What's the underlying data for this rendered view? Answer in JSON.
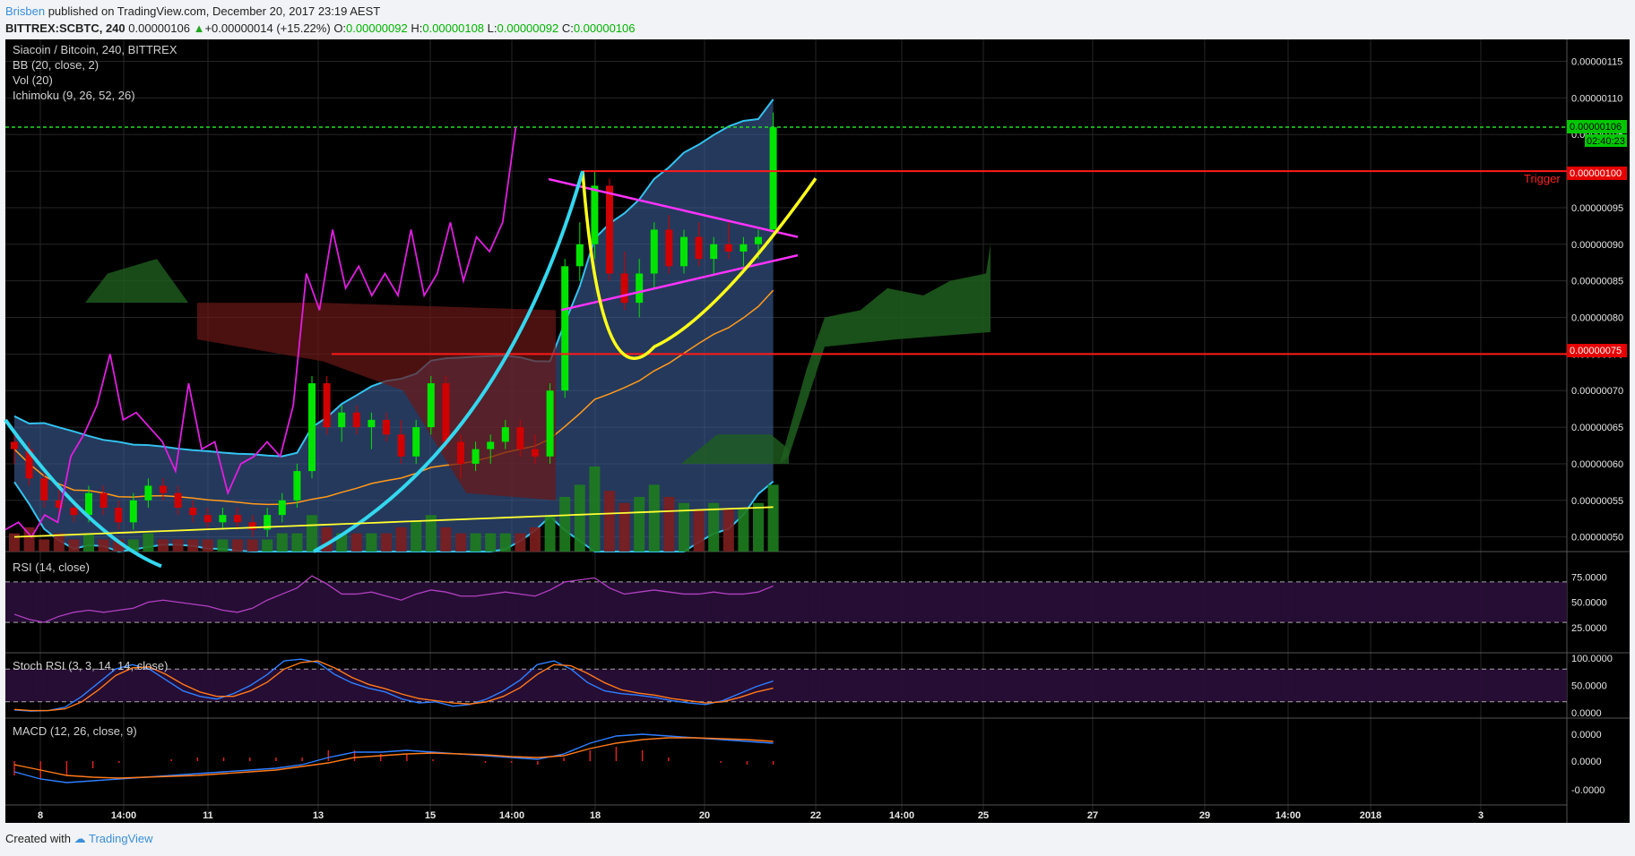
{
  "header": {
    "author": "Brisben",
    "published": "published on TradingView.com, December 20, 2017 23:19 AEST",
    "symbol": "BITTREX:SCBTC, 240",
    "price": "0.00000106",
    "change_arrow": "▲",
    "change": "+0.00000014 (+15.22%)",
    "o_label": "O:",
    "o_value": "0.00000092",
    "h_label": "H:",
    "h_value": "0.00000108",
    "l_label": "L:",
    "l_value": "0.00000092",
    "c_label": "C:",
    "c_value": "0.00000106"
  },
  "legend": {
    "title": "Siacoin / Bitcoin, 240, BITTREX",
    "bb": "BB (20, close, 2)",
    "vol": "Vol (20)",
    "ichimoku": "Ichimoku (9, 26, 52, 26)"
  },
  "panes": {
    "rsi": "RSI (14, close)",
    "stoch": "Stoch RSI (3, 3, 14, 14, close)",
    "macd": "MACD (12, 26, close, 9)"
  },
  "price_axis": [
    "0.00000115",
    "0.00000110",
    "0.00000105",
    "0.00000100",
    "0.00000095",
    "0.00000090",
    "0.00000085",
    "0.00000080",
    "0.00000075",
    "0.00000070",
    "0.00000065",
    "0.00000060",
    "0.00000055",
    "0.00000050"
  ],
  "rsi_axis": [
    "75.0000",
    "50.0000",
    "25.0000"
  ],
  "stoch_axis": [
    "100.0000",
    "50.0000",
    "0.0000"
  ],
  "macd_axis": [
    "0.0000",
    "0.0000",
    "-0.0000"
  ],
  "time_axis": [
    "8",
    "14:00",
    "11",
    "13",
    "15",
    "14:00",
    "18",
    "20",
    "22",
    "14:00",
    "25",
    "27",
    "29",
    "14:00",
    "2018",
    "3"
  ],
  "price_tags": {
    "last": "0.00000106",
    "countdown": "02:40:23",
    "trigger_price": "0.00000100",
    "trigger_label": "Trigger",
    "support_price": "0.00000075"
  },
  "footer": {
    "created": "Created with",
    "brand": "TradingView"
  },
  "colors": {
    "background": "#000000",
    "bull": "#00e500",
    "bear": "#d00000",
    "bb_line": "#33c3ef",
    "bb_fill": "#3d5f99",
    "cloud_bull": "#1f5e1f",
    "cloud_bear": "#6b1717",
    "trigger_line": "#ff1a1a",
    "triangle": "#ff33ff",
    "cup": "#ffff1a",
    "curve": "#33d8f0",
    "macd_line": "#2f7fff",
    "signal_line": "#ff7a1a"
  },
  "chart_data": {
    "type": "candlestick",
    "symbol": "BITTREX:SCBTC",
    "interval": "240",
    "ylim": [
      4.8e-07,
      1.18e-06
    ],
    "last_price": 1.06e-06,
    "horizontal_levels": [
      1e-06,
      7.5e-07
    ],
    "candles": [
      [
        6.3e-07,
        6.4e-07,
        6e-07,
        6.2e-07
      ],
      [
        6.2e-07,
        6.3e-07,
        5.7e-07,
        5.8e-07
      ],
      [
        5.8e-07,
        5.9e-07,
        5.4e-07,
        5.5e-07
      ],
      [
        5.5e-07,
        5.7e-07,
        5.3e-07,
        5.4e-07
      ],
      [
        5.4e-07,
        5.5e-07,
        5.2e-07,
        5.3e-07
      ],
      [
        5.3e-07,
        5.7e-07,
        5.2e-07,
        5.6e-07
      ],
      [
        5.6e-07,
        5.7e-07,
        5.3e-07,
        5.4e-07
      ],
      [
        5.4e-07,
        5.5e-07,
        5.1e-07,
        5.2e-07
      ],
      [
        5.2e-07,
        5.6e-07,
        5.1e-07,
        5.5e-07
      ],
      [
        5.5e-07,
        5.8e-07,
        5.4e-07,
        5.7e-07
      ],
      [
        5.7e-07,
        5.8e-07,
        5.5e-07,
        5.6e-07
      ],
      [
        5.6e-07,
        5.7e-07,
        5.3e-07,
        5.4e-07
      ],
      [
        5.4e-07,
        5.5e-07,
        5.2e-07,
        5.3e-07
      ],
      [
        5.3e-07,
        5.4e-07,
        5.1e-07,
        5.2e-07
      ],
      [
        5.2e-07,
        5.4e-07,
        5.1e-07,
        5.3e-07
      ],
      [
        5.3e-07,
        5.4e-07,
        5.1e-07,
        5.2e-07
      ],
      [
        5.2e-07,
        5.3e-07,
        5e-07,
        5.1e-07
      ],
      [
        5.1e-07,
        5.4e-07,
        5e-07,
        5.3e-07
      ],
      [
        5.3e-07,
        5.6e-07,
        5.2e-07,
        5.5e-07
      ],
      [
        5.5e-07,
        6e-07,
        5.4e-07,
        5.9e-07
      ],
      [
        5.9e-07,
        7.2e-07,
        5.8e-07,
        7.1e-07
      ],
      [
        7.1e-07,
        7.2e-07,
        6.4e-07,
        6.5e-07
      ],
      [
        6.5e-07,
        6.8e-07,
        6.3e-07,
        6.7e-07
      ],
      [
        6.7e-07,
        6.8e-07,
        6.4e-07,
        6.5e-07
      ],
      [
        6.5e-07,
        6.7e-07,
        6.2e-07,
        6.6e-07
      ],
      [
        6.6e-07,
        6.7e-07,
        6.3e-07,
        6.4e-07
      ],
      [
        6.4e-07,
        6.6e-07,
        6e-07,
        6.1e-07
      ],
      [
        6.1e-07,
        6.6e-07,
        6e-07,
        6.5e-07
      ],
      [
        6.5e-07,
        7.2e-07,
        6.4e-07,
        7.1e-07
      ],
      [
        7.1e-07,
        7.2e-07,
        6.2e-07,
        6.3e-07
      ],
      [
        6.3e-07,
        6.4e-07,
        5.8e-07,
        6e-07
      ],
      [
        6e-07,
        6.3e-07,
        5.9e-07,
        6.2e-07
      ],
      [
        6.2e-07,
        6.4e-07,
        6e-07,
        6.3e-07
      ],
      [
        6.3e-07,
        6.6e-07,
        6.2e-07,
        6.5e-07
      ],
      [
        6.5e-07,
        6.6e-07,
        6.1e-07,
        6.2e-07
      ],
      [
        6.2e-07,
        6.4e-07,
        6e-07,
        6.1e-07
      ],
      [
        6.1e-07,
        7.1e-07,
        6e-07,
        7e-07
      ],
      [
        7e-07,
        8.8e-07,
        6.9e-07,
        8.7e-07
      ],
      [
        8.7e-07,
        9.3e-07,
        8.5e-07,
        9e-07
      ],
      [
        9e-07,
        1e-06,
        8.8e-07,
        9.8e-07
      ],
      [
        9.8e-07,
        9.9e-07,
        8.5e-07,
        8.6e-07
      ],
      [
        8.6e-07,
        8.9e-07,
        8.1e-07,
        8.2e-07
      ],
      [
        8.2e-07,
        8.8e-07,
        8e-07,
        8.6e-07
      ],
      [
        8.6e-07,
        9.3e-07,
        8.4e-07,
        9.2e-07
      ],
      [
        9.2e-07,
        9.4e-07,
        8.6e-07,
        8.7e-07
      ],
      [
        8.7e-07,
        9.2e-07,
        8.6e-07,
        9.1e-07
      ],
      [
        9.1e-07,
        9.3e-07,
        8.7e-07,
        8.8e-07
      ],
      [
        8.8e-07,
        9.1e-07,
        8.6e-07,
        9e-07
      ],
      [
        9e-07,
        9.3e-07,
        8.8e-07,
        8.9e-07
      ],
      [
        8.9e-07,
        9.1e-07,
        8.7e-07,
        9e-07
      ],
      [
        9e-07,
        9.2e-07,
        8.8e-07,
        9.1e-07
      ],
      [
        9.2e-07,
        1.08e-06,
        9.2e-07,
        1.06e-06
      ]
    ],
    "volume": [
      3,
      4,
      2,
      3,
      2,
      3,
      2,
      2,
      2,
      3,
      2,
      2,
      2,
      2,
      2,
      2,
      2,
      2,
      3,
      3,
      6,
      4,
      3,
      3,
      3,
      3,
      4,
      5,
      6,
      4,
      3,
      3,
      3,
      3,
      3,
      4,
      6,
      9,
      11,
      14,
      10,
      8,
      9,
      11,
      9,
      8,
      7,
      8,
      7,
      7,
      8,
      11
    ],
    "rsi": [
      38,
      33,
      30,
      36,
      40,
      42,
      40,
      42,
      44,
      50,
      52,
      50,
      48,
      46,
      42,
      40,
      44,
      52,
      58,
      64,
      76,
      68,
      58,
      58,
      60,
      56,
      52,
      58,
      62,
      60,
      56,
      56,
      58,
      60,
      58,
      56,
      62,
      70,
      72,
      74,
      64,
      58,
      60,
      62,
      60,
      58,
      58,
      60,
      58,
      58,
      60,
      66
    ],
    "stoch_k": [
      5,
      3,
      4,
      10,
      30,
      55,
      80,
      88,
      80,
      60,
      40,
      30,
      25,
      35,
      50,
      70,
      95,
      98,
      92,
      70,
      55,
      45,
      38,
      25,
      18,
      20,
      12,
      15,
      25,
      40,
      60,
      88,
      95,
      80,
      55,
      40,
      35,
      32,
      28,
      22,
      18,
      15,
      22,
      35,
      48,
      58
    ],
    "stoch_d": [
      6,
      4,
      4,
      7,
      20,
      42,
      68,
      82,
      84,
      70,
      52,
      38,
      30,
      30,
      40,
      56,
      80,
      92,
      95,
      82,
      65,
      52,
      44,
      34,
      26,
      22,
      18,
      16,
      20,
      30,
      46,
      70,
      88,
      86,
      72,
      55,
      42,
      36,
      32,
      26,
      22,
      18,
      20,
      28,
      38,
      45
    ],
    "macd": [
      -0.6,
      -1.0,
      -1.2,
      -1.1,
      -1.0,
      -0.9,
      -0.8,
      -0.7,
      -0.6,
      -0.5,
      -0.4,
      -0.2,
      0.2,
      0.5,
      0.5,
      0.6,
      0.5,
      0.4,
      0.3,
      0.2,
      0.1,
      0.4,
      1.0,
      1.4,
      1.5,
      1.4,
      1.3,
      1.2,
      1.1,
      1.0
    ],
    "signal": [
      -0.2,
      -0.5,
      -0.8,
      -0.9,
      -0.95,
      -0.9,
      -0.85,
      -0.8,
      -0.7,
      -0.6,
      -0.5,
      -0.3,
      -0.1,
      0.2,
      0.3,
      0.4,
      0.45,
      0.4,
      0.35,
      0.25,
      0.2,
      0.3,
      0.7,
      1.0,
      1.2,
      1.3,
      1.3,
      1.25,
      1.2,
      1.1
    ]
  }
}
